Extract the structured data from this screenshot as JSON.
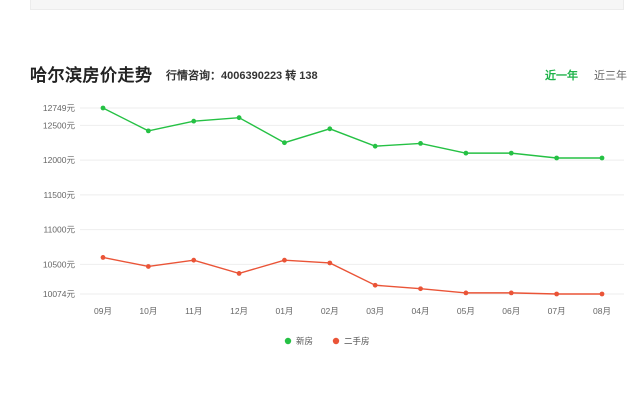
{
  "header": {
    "title": "哈尔滨房价走势",
    "hotline": "行情咨询：4006390223 转 138",
    "tabs": [
      {
        "label": "近一年",
        "active": true
      },
      {
        "label": "近三年",
        "active": false
      }
    ]
  },
  "colors": {
    "new_house": "#25c144",
    "second_hand": "#ea5437",
    "grid": "#eeeeee",
    "active_tab": "#1fb34a"
  },
  "chart_data": {
    "type": "line",
    "categories": [
      "09月",
      "10月",
      "11月",
      "12月",
      "01月",
      "02月",
      "03月",
      "04月",
      "05月",
      "06月",
      "07月",
      "08月"
    ],
    "yticks": [
      {
        "value": 12749,
        "label": "12749元"
      },
      {
        "value": 12500,
        "label": "12500元"
      },
      {
        "value": 12000,
        "label": "12000元"
      },
      {
        "value": 11500,
        "label": "11500元"
      },
      {
        "value": 11000,
        "label": "11000元"
      },
      {
        "value": 10500,
        "label": "10500元"
      },
      {
        "value": 10074,
        "label": "10074元"
      }
    ],
    "ylim": [
      10074,
      12749
    ],
    "grid": true,
    "legend_position": "bottom-center",
    "series": [
      {
        "name": "新房",
        "color": "#25c144",
        "values": [
          12749,
          12420,
          12560,
          12610,
          12250,
          12450,
          12200,
          12240,
          12100,
          12100,
          12030,
          12030
        ]
      },
      {
        "name": "二手房",
        "color": "#ea5437",
        "values": [
          10600,
          10470,
          10560,
          10370,
          10560,
          10520,
          10200,
          10150,
          10090,
          10090,
          10074,
          10074
        ]
      }
    ]
  }
}
